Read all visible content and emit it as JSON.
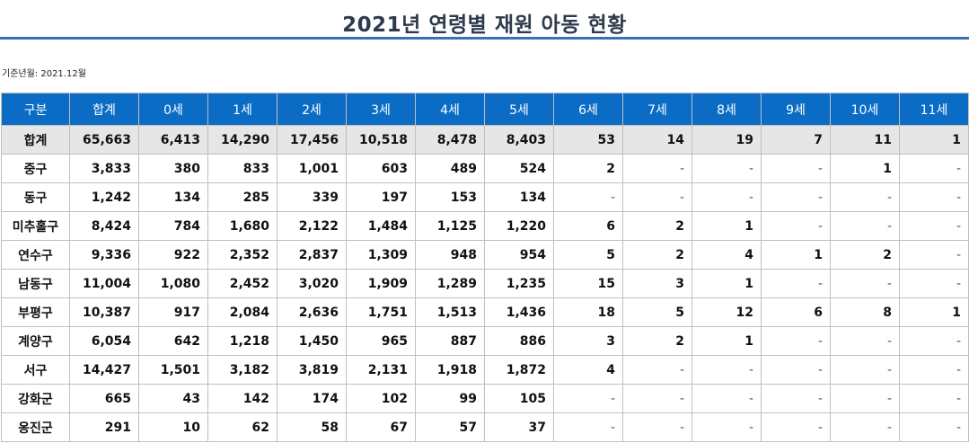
{
  "title": "2021년 연령별 재원 아동 현황",
  "base_date_label": "기준년월: 2021.12월",
  "headers": [
    "구분",
    "합계",
    "0세",
    "1세",
    "2세",
    "3세",
    "4세",
    "5세",
    "6세",
    "7세",
    "8세",
    "9세",
    "10세",
    "11세"
  ],
  "rows": [
    [
      "합계",
      "65,663",
      "6,413",
      "14,290",
      "17,456",
      "10,518",
      "8,478",
      "8,403",
      "53",
      "14",
      "19",
      "7",
      "11",
      "1"
    ],
    [
      "중구",
      "3,833",
      "380",
      "833",
      "1,001",
      "603",
      "489",
      "524",
      "2",
      "-",
      "-",
      "-",
      "1",
      "-"
    ],
    [
      "동구",
      "1,242",
      "134",
      "285",
      "339",
      "197",
      "153",
      "134",
      "-",
      "-",
      "-",
      "-",
      "-",
      "-"
    ],
    [
      "미추홀구",
      "8,424",
      "784",
      "1,680",
      "2,122",
      "1,484",
      "1,125",
      "1,220",
      "6",
      "2",
      "1",
      "-",
      "-",
      "-"
    ],
    [
      "연수구",
      "9,336",
      "922",
      "2,352",
      "2,837",
      "1,309",
      "948",
      "954",
      "5",
      "2",
      "4",
      "1",
      "2",
      "-"
    ],
    [
      "남동구",
      "11,004",
      "1,080",
      "2,452",
      "3,020",
      "1,909",
      "1,289",
      "1,235",
      "15",
      "3",
      "1",
      "-",
      "-",
      "-"
    ],
    [
      "부평구",
      "10,387",
      "917",
      "2,084",
      "2,636",
      "1,751",
      "1,513",
      "1,436",
      "18",
      "5",
      "12",
      "6",
      "8",
      "1"
    ],
    [
      "계양구",
      "6,054",
      "642",
      "1,218",
      "1,450",
      "965",
      "887",
      "886",
      "3",
      "2",
      "1",
      "-",
      "-",
      "-"
    ],
    [
      "서구",
      "14,427",
      "1,501",
      "3,182",
      "3,819",
      "2,131",
      "1,918",
      "1,872",
      "4",
      "-",
      "-",
      "-",
      "-",
      "-"
    ],
    [
      "강화군",
      "665",
      "43",
      "142",
      "174",
      "102",
      "99",
      "105",
      "-",
      "-",
      "-",
      "-",
      "-",
      "-"
    ],
    [
      "옹진군",
      "291",
      "10",
      "62",
      "58",
      "67",
      "57",
      "37",
      "-",
      "-",
      "-",
      "-",
      "-",
      "-"
    ]
  ]
}
